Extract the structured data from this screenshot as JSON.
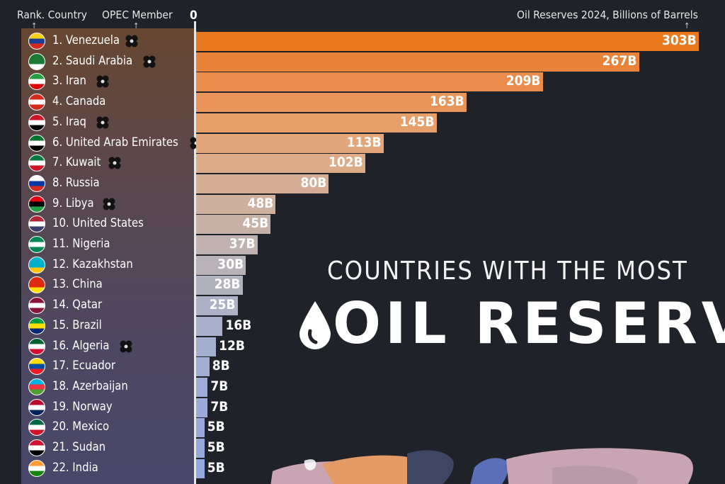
{
  "header": {
    "rank_country": "Rank. Country",
    "opec_member": "OPEC Member",
    "zero": "0",
    "reserves_label": "Oil Reserves 2024, Billions of Barrels"
  },
  "title": {
    "line1": "COUNTRIES WITH THE MOST",
    "line2": "OIL RESERVES"
  },
  "chart_data": {
    "type": "bar",
    "orientation": "horizontal",
    "title": "COUNTRIES WITH THE MOST OIL RESERVES",
    "xlabel": "Oil Reserves 2024, Billions of Barrels",
    "xlim": [
      0,
      303
    ],
    "categories": [
      "1. Venezuela",
      "2. Saudi Arabia",
      "3. Iran",
      "4. Canada",
      "5. Iraq",
      "6. United Arab Emirates",
      "7. Kuwait",
      "8. Russia",
      "9. Libya",
      "10. United States",
      "11. Nigeria",
      "12. Kazakhstan",
      "13. China",
      "14. Qatar",
      "15. Brazil",
      "16. Algeria",
      "17. Ecuador",
      "18. Azerbaijan",
      "19. Norway",
      "20. Mexico",
      "21. Sudan",
      "22. India"
    ],
    "values": [
      303,
      267,
      209,
      163,
      145,
      113,
      102,
      80,
      48,
      45,
      37,
      30,
      28,
      25,
      16,
      12,
      8,
      7,
      7,
      5,
      5,
      5
    ],
    "value_labels": [
      "303B",
      "267B",
      "209B",
      "163B",
      "145B",
      "113B",
      "102B",
      "80B",
      "48B",
      "45B",
      "37B",
      "30B",
      "28B",
      "25B",
      "16B",
      "12B",
      "8B",
      "7B",
      "7B",
      "5B",
      "5B",
      "5B"
    ],
    "opec_member": [
      true,
      true,
      true,
      false,
      true,
      true,
      true,
      false,
      true,
      false,
      false,
      false,
      false,
      false,
      false,
      true,
      false,
      false,
      false,
      false,
      false,
      false
    ],
    "bar_colors": [
      "#e8791f",
      "#e9833a",
      "#ea8c4b",
      "#e9955a",
      "#e79f6a",
      "#e2a67a",
      "#dcab88",
      "#d4ad94",
      "#cdb09e",
      "#c6b1a7",
      "#bfb2b0",
      "#b8b2b8",
      "#b2b2bf",
      "#acb1c6",
      "#a8b0cb",
      "#a4afd0",
      "#a1aed4",
      "#9eadd8",
      "#9bacdb",
      "#99abde",
      "#97aae0",
      "#95a9e2"
    ],
    "flag_colors": [
      [
        "#f7d117",
        "#1c3f94",
        "#d52b1e"
      ],
      [
        "#1a7a36",
        "#1a7a36",
        "#ffffff"
      ],
      [
        "#239f40",
        "#ffffff",
        "#da0000"
      ],
      [
        "#d52b1e",
        "#ffffff",
        "#d52b1e"
      ],
      [
        "#ce1126",
        "#ffffff",
        "#000000"
      ],
      [
        "#00732f",
        "#ffffff",
        "#000000"
      ],
      [
        "#007a3d",
        "#ffffff",
        "#ce1126"
      ],
      [
        "#ffffff",
        "#0039a6",
        "#d52b1e"
      ],
      [
        "#e70013",
        "#000000",
        "#239e46"
      ],
      [
        "#b22234",
        "#ffffff",
        "#3c3b6e"
      ],
      [
        "#008751",
        "#ffffff",
        "#008751"
      ],
      [
        "#00afca",
        "#00afca",
        "#fec50c"
      ],
      [
        "#de2910",
        "#de2910",
        "#ffde00"
      ],
      [
        "#8a1538",
        "#ffffff",
        "#8a1538"
      ],
      [
        "#009c3b",
        "#ffdf00",
        "#002776"
      ],
      [
        "#006233",
        "#ffffff",
        "#d21034"
      ],
      [
        "#ffdd00",
        "#034ea2",
        "#ed1c24"
      ],
      [
        "#00b5e2",
        "#ef3340",
        "#509e2f"
      ],
      [
        "#ba0c2f",
        "#ffffff",
        "#00205b"
      ],
      [
        "#006847",
        "#ffffff",
        "#ce1126"
      ],
      [
        "#d21034",
        "#ffffff",
        "#000000"
      ],
      [
        "#ff9933",
        "#ffffff",
        "#138808"
      ]
    ]
  },
  "icons": {
    "opec": "opec-icon",
    "drop": "oil-drop-icon",
    "map": "world-map"
  },
  "colors": {
    "background": "#1f2229",
    "axis": "#e8e8e8",
    "accent": "#e8791f"
  }
}
